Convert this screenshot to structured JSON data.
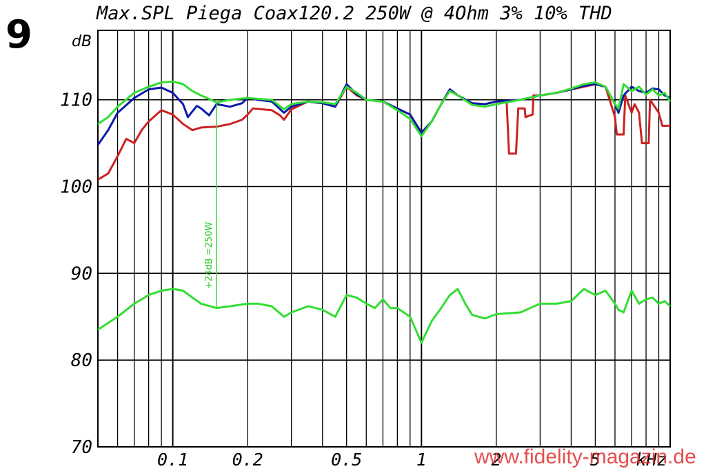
{
  "figure_number": "9",
  "watermark": "www.fidelity-magazin.de",
  "colors": {
    "red": "#cc2222",
    "blue": "#0a1aa8",
    "green": "#33dd33",
    "grid": "#000000"
  },
  "chart_data": {
    "type": "line",
    "title": "Max.SPL Piega Coax120.2 250W @ 4Ohm 3% 10% THD",
    "y_unit_label": "dB",
    "x_unit_label": "kHz",
    "xscale": "log",
    "xlim": [
      0.05,
      10
    ],
    "ylim": [
      70,
      118
    ],
    "y_ticks": [
      70,
      80,
      90,
      100,
      110
    ],
    "x_tick_labels": [
      {
        "value": 0.1,
        "label": "0.1"
      },
      {
        "value": 0.2,
        "label": "0.2"
      },
      {
        "value": 0.5,
        "label": "0.5"
      },
      {
        "value": 1,
        "label": "1"
      },
      {
        "value": 2,
        "label": "2"
      },
      {
        "value": 5,
        "label": "5"
      }
    ],
    "annotation": {
      "text": "+24dB =250W",
      "x": 0.15,
      "y_from": 86,
      "y_to": 109.7
    },
    "series": [
      {
        "color": "red",
        "points": [
          [
            0.05,
            100.8
          ],
          [
            0.055,
            101.5
          ],
          [
            0.06,
            103.5
          ],
          [
            0.065,
            105.5
          ],
          [
            0.07,
            105
          ],
          [
            0.075,
            106.5
          ],
          [
            0.08,
            107.5
          ],
          [
            0.09,
            108.8
          ],
          [
            0.1,
            108.3
          ],
          [
            0.11,
            107.2
          ],
          [
            0.12,
            106.5
          ],
          [
            0.13,
            106.8
          ],
          [
            0.15,
            106.9
          ],
          [
            0.17,
            107.2
          ],
          [
            0.19,
            107.7
          ],
          [
            0.2,
            108.3
          ],
          [
            0.21,
            109
          ],
          [
            0.25,
            108.8
          ],
          [
            0.27,
            108.2
          ],
          [
            0.28,
            107.7
          ],
          [
            0.3,
            108.9
          ],
          [
            0.35,
            109.8
          ],
          [
            0.4,
            109.6
          ],
          [
            0.45,
            109.2
          ],
          [
            0.5,
            111.5
          ],
          [
            0.55,
            110.5
          ],
          [
            0.6,
            110
          ],
          [
            0.7,
            109.8
          ],
          [
            0.8,
            109
          ],
          [
            0.9,
            108.3
          ],
          [
            1.0,
            106.2
          ],
          [
            1.1,
            107.5
          ],
          [
            1.2,
            109.5
          ],
          [
            1.3,
            111.2
          ],
          [
            1.4,
            110.5
          ],
          [
            1.6,
            109.6
          ],
          [
            1.8,
            109.5
          ],
          [
            2.0,
            109.8
          ],
          [
            2.2,
            109.8
          ],
          [
            2.25,
            103.8
          ],
          [
            2.4,
            103.8
          ],
          [
            2.45,
            109
          ],
          [
            2.6,
            109
          ],
          [
            2.62,
            108
          ],
          [
            2.8,
            108.3
          ],
          [
            2.82,
            110.5
          ],
          [
            3.0,
            110.5
          ],
          [
            3.5,
            110.8
          ],
          [
            4.0,
            111.2
          ],
          [
            4.5,
            111.5
          ],
          [
            5.0,
            111.8
          ],
          [
            5.5,
            111.5
          ],
          [
            6.0,
            108
          ],
          [
            6.1,
            106
          ],
          [
            6.5,
            106
          ],
          [
            6.6,
            110.5
          ],
          [
            7.0,
            108.5
          ],
          [
            7.2,
            109.5
          ],
          [
            7.5,
            108.5
          ],
          [
            7.7,
            105
          ],
          [
            8.2,
            105
          ],
          [
            8.3,
            110
          ],
          [
            9.0,
            108.5
          ],
          [
            9.3,
            107
          ],
          [
            10,
            107
          ]
        ]
      },
      {
        "color": "blue",
        "points": [
          [
            0.05,
            104.8
          ],
          [
            0.055,
            106.5
          ],
          [
            0.06,
            108.5
          ],
          [
            0.07,
            110.2
          ],
          [
            0.08,
            111.2
          ],
          [
            0.09,
            111.4
          ],
          [
            0.1,
            110.8
          ],
          [
            0.11,
            109.5
          ],
          [
            0.115,
            108
          ],
          [
            0.125,
            109.3
          ],
          [
            0.13,
            109
          ],
          [
            0.14,
            108.2
          ],
          [
            0.15,
            109.5
          ],
          [
            0.17,
            109.2
          ],
          [
            0.19,
            109.6
          ],
          [
            0.2,
            110.2
          ],
          [
            0.22,
            110
          ],
          [
            0.25,
            109.8
          ],
          [
            0.28,
            108.5
          ],
          [
            0.3,
            109.2
          ],
          [
            0.35,
            109.8
          ],
          [
            0.4,
            109.6
          ],
          [
            0.45,
            109.2
          ],
          [
            0.5,
            111.8
          ],
          [
            0.55,
            110.6
          ],
          [
            0.6,
            110
          ],
          [
            0.7,
            109.8
          ],
          [
            0.8,
            109
          ],
          [
            0.9,
            108.3
          ],
          [
            1.0,
            106.2
          ],
          [
            1.1,
            107.5
          ],
          [
            1.2,
            109.5
          ],
          [
            1.3,
            111.2
          ],
          [
            1.4,
            110.5
          ],
          [
            1.6,
            109.6
          ],
          [
            1.8,
            109.5
          ],
          [
            2.0,
            109.8
          ],
          [
            2.5,
            110
          ],
          [
            3.0,
            110.5
          ],
          [
            3.5,
            110.8
          ],
          [
            4.0,
            111.2
          ],
          [
            4.5,
            111.6
          ],
          [
            5.0,
            111.8
          ],
          [
            5.5,
            111.5
          ],
          [
            6.0,
            109.5
          ],
          [
            6.2,
            108.5
          ],
          [
            6.5,
            110.5
          ],
          [
            7.0,
            111.5
          ],
          [
            7.5,
            111
          ],
          [
            8.0,
            110.8
          ],
          [
            8.5,
            111.3
          ],
          [
            9.0,
            111.2
          ],
          [
            9.5,
            110.5
          ],
          [
            10,
            110.2
          ]
        ]
      },
      {
        "color": "green",
        "points": [
          [
            0.05,
            107.2
          ],
          [
            0.055,
            108
          ],
          [
            0.06,
            109.2
          ],
          [
            0.07,
            110.8
          ],
          [
            0.08,
            111.5
          ],
          [
            0.09,
            112
          ],
          [
            0.1,
            112.1
          ],
          [
            0.11,
            111.8
          ],
          [
            0.12,
            111
          ],
          [
            0.13,
            110.5
          ],
          [
            0.15,
            109.7
          ],
          [
            0.17,
            110
          ],
          [
            0.2,
            110.2
          ],
          [
            0.22,
            110.1
          ],
          [
            0.25,
            110
          ],
          [
            0.28,
            108.9
          ],
          [
            0.3,
            109.5
          ],
          [
            0.35,
            109.8
          ],
          [
            0.4,
            109.7
          ],
          [
            0.45,
            109.5
          ],
          [
            0.5,
            111.5
          ],
          [
            0.55,
            110.8
          ],
          [
            0.6,
            110
          ],
          [
            0.7,
            109.8
          ],
          [
            0.8,
            108.8
          ],
          [
            0.9,
            107.8
          ],
          [
            1.0,
            105.8
          ],
          [
            1.1,
            107.5
          ],
          [
            1.2,
            109.5
          ],
          [
            1.3,
            111
          ],
          [
            1.4,
            110.5
          ],
          [
            1.6,
            109.4
          ],
          [
            1.8,
            109.2
          ],
          [
            2.0,
            109.5
          ],
          [
            2.5,
            110
          ],
          [
            3.0,
            110.5
          ],
          [
            3.5,
            110.8
          ],
          [
            4.0,
            111.3
          ],
          [
            4.5,
            111.8
          ],
          [
            5.0,
            112
          ],
          [
            5.5,
            111.5
          ],
          [
            6.0,
            109.5
          ],
          [
            6.2,
            109
          ],
          [
            6.5,
            111.8
          ],
          [
            7.0,
            111
          ],
          [
            7.5,
            111.5
          ],
          [
            8.0,
            110.6
          ],
          [
            8.5,
            111.2
          ],
          [
            9.0,
            110.5
          ],
          [
            9.5,
            110.8
          ],
          [
            10,
            109.8
          ]
        ]
      },
      {
        "color": "green",
        "points": [
          [
            0.05,
            83.5
          ],
          [
            0.06,
            85
          ],
          [
            0.07,
            86.5
          ],
          [
            0.08,
            87.5
          ],
          [
            0.09,
            88
          ],
          [
            0.1,
            88.2
          ],
          [
            0.11,
            88
          ],
          [
            0.12,
            87.2
          ],
          [
            0.13,
            86.5
          ],
          [
            0.15,
            86
          ],
          [
            0.17,
            86.2
          ],
          [
            0.2,
            86.5
          ],
          [
            0.22,
            86.5
          ],
          [
            0.25,
            86.2
          ],
          [
            0.28,
            85
          ],
          [
            0.3,
            85.5
          ],
          [
            0.35,
            86.2
          ],
          [
            0.4,
            85.8
          ],
          [
            0.45,
            85
          ],
          [
            0.5,
            87.5
          ],
          [
            0.55,
            87.2
          ],
          [
            0.6,
            86.5
          ],
          [
            0.65,
            86
          ],
          [
            0.7,
            87
          ],
          [
            0.75,
            86
          ],
          [
            0.8,
            86
          ],
          [
            0.9,
            85
          ],
          [
            1.0,
            82
          ],
          [
            1.1,
            84.5
          ],
          [
            1.2,
            86
          ],
          [
            1.3,
            87.5
          ],
          [
            1.4,
            88.2
          ],
          [
            1.5,
            86.5
          ],
          [
            1.6,
            85.2
          ],
          [
            1.8,
            84.8
          ],
          [
            2.0,
            85.3
          ],
          [
            2.5,
            85.5
          ],
          [
            3.0,
            86.5
          ],
          [
            3.5,
            86.5
          ],
          [
            4.0,
            86.8
          ],
          [
            4.5,
            88.2
          ],
          [
            5.0,
            87.5
          ],
          [
            5.5,
            88
          ],
          [
            6.0,
            86.5
          ],
          [
            6.2,
            85.8
          ],
          [
            6.5,
            85.5
          ],
          [
            7.0,
            88
          ],
          [
            7.5,
            86.5
          ],
          [
            8.0,
            87
          ],
          [
            8.5,
            87.2
          ],
          [
            9.0,
            86.5
          ],
          [
            9.5,
            86.8
          ],
          [
            10,
            86.2
          ]
        ]
      }
    ]
  }
}
